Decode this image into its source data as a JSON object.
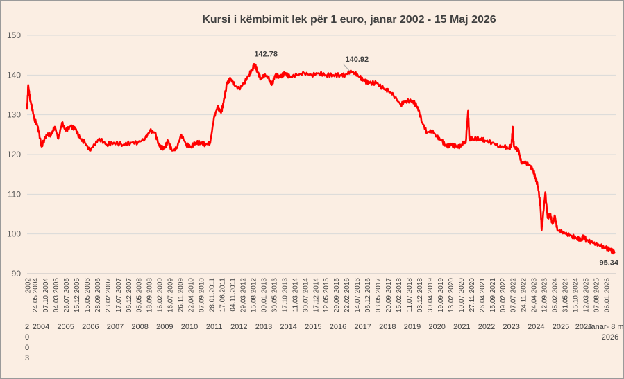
{
  "chart_data": {
    "type": "line",
    "title": "Kursi i këmbimit lek për 1 euro, janar 2002 - 15 Maj 2026",
    "xlabel": "",
    "ylabel": "",
    "ylim": [
      90,
      150
    ],
    "yticks": [
      90,
      100,
      110,
      120,
      130,
      140,
      150
    ],
    "grid": true,
    "line_color": "#ff0000",
    "first_date_label": "2002",
    "date_ticks": [
      "24.05.2004",
      "07.10.2004",
      "04.03.2005",
      "26.07.2005",
      "15.12.2005",
      "15.05.2006",
      "28.09.2006",
      "23.02.2007",
      "17.07.2007",
      "06.12.2007",
      "05.05.2008",
      "18.09.2008",
      "16.02.2009",
      "16.07.2009",
      "26.11.2009",
      "22.04.2010",
      "07.09.2010",
      "28.01.2011",
      "17.06.2011",
      "04.11.2011",
      "29.03.2012",
      "15.08.2012",
      "09.01.2013",
      "30.05.2013",
      "17.10.2013",
      "11.03.2014",
      "30.07.2014",
      "17.12.2014",
      "12.05.2015",
      "29.09.2015",
      "22.02.2016",
      "14.07.2016",
      "06.12.2016",
      "03.05.2017",
      "20.09.2017",
      "15.02.2018",
      "11.07.2018",
      "03.12.2018",
      "30.04.2019",
      "19.09.2019",
      "13.02.2020",
      "10.07.2020",
      "27.11.2020",
      "26.04.2021",
      "15.09.2021",
      "09.02.2022",
      "07.07.2022",
      "24.11.2022",
      "24.04.2023",
      "12.09.2023",
      "05.02.2024",
      "31.05.2024",
      "15.10.2024",
      "12.03.2025",
      "07.08.2025",
      "06.01.2026"
    ],
    "year_labels": [
      "2004",
      "2005",
      "2006",
      "2007",
      "2008",
      "2009",
      "2010",
      "2011",
      "2012",
      "2013",
      "2014",
      "2015",
      "2016",
      "2017",
      "2018",
      "2019",
      "2020",
      "2021",
      "2022",
      "2023",
      "2024",
      "2025"
    ],
    "year_2003_letters": [
      "2",
      "0",
      "0",
      "3"
    ],
    "year_2026_label": "2026",
    "last_tick_label": "Janar- 8 m",
    "last_year_label": "2026",
    "annotations": [
      {
        "text": "142.78",
        "x": 2011.45,
        "y": 142.78
      },
      {
        "text": "140.92",
        "x": 2015.4,
        "y": 140.92
      },
      {
        "text": "95.34",
        "x": 2026.37,
        "y": 95.34
      }
    ],
    "series": [
      {
        "points": [
          [
            2002.0,
            131.5
          ],
          [
            2002.05,
            137.5
          ],
          [
            2002.12,
            134
          ],
          [
            2002.2,
            132
          ],
          [
            2002.3,
            129
          ],
          [
            2002.45,
            127
          ],
          [
            2002.6,
            122
          ],
          [
            2002.8,
            125
          ],
          [
            2003.0,
            125
          ],
          [
            2003.15,
            127
          ],
          [
            2003.3,
            124
          ],
          [
            2003.45,
            128
          ],
          [
            2003.6,
            126
          ],
          [
            2003.8,
            127
          ],
          [
            2004.0,
            126.5
          ],
          [
            2004.2,
            124
          ],
          [
            2004.4,
            123
          ],
          [
            2004.6,
            121
          ],
          [
            2004.8,
            122.5
          ],
          [
            2005.0,
            124
          ],
          [
            2005.3,
            122.5
          ],
          [
            2005.6,
            123
          ],
          [
            2006.0,
            122.5
          ],
          [
            2006.3,
            123
          ],
          [
            2006.6,
            123
          ],
          [
            2006.9,
            124
          ],
          [
            2007.1,
            126
          ],
          [
            2007.3,
            125.5
          ],
          [
            2007.5,
            122
          ],
          [
            2007.7,
            121.5
          ],
          [
            2007.85,
            123.5
          ],
          [
            2008.0,
            121
          ],
          [
            2008.2,
            121.5
          ],
          [
            2008.4,
            125
          ],
          [
            2008.6,
            122.5
          ],
          [
            2008.8,
            122
          ],
          [
            2009.0,
            123
          ],
          [
            2009.2,
            123
          ],
          [
            2009.4,
            122.5
          ],
          [
            2009.6,
            123
          ],
          [
            2009.75,
            129
          ],
          [
            2009.9,
            132
          ],
          [
            2010.05,
            130.5
          ],
          [
            2010.15,
            133
          ],
          [
            2010.3,
            138
          ],
          [
            2010.45,
            139
          ],
          [
            2010.6,
            137.5
          ],
          [
            2010.8,
            136.5
          ],
          [
            2011.0,
            138
          ],
          [
            2011.2,
            140
          ],
          [
            2011.35,
            141.5
          ],
          [
            2011.45,
            142.78
          ],
          [
            2011.55,
            141
          ],
          [
            2011.7,
            139
          ],
          [
            2011.85,
            140
          ],
          [
            2012.0,
            139.5
          ],
          [
            2012.15,
            137.5
          ],
          [
            2012.3,
            140
          ],
          [
            2012.5,
            139.5
          ],
          [
            2012.7,
            140.5
          ],
          [
            2012.9,
            139.5
          ],
          [
            2013.2,
            140
          ],
          [
            2013.5,
            140.5
          ],
          [
            2013.8,
            140
          ],
          [
            2014.1,
            140.5
          ],
          [
            2014.4,
            140
          ],
          [
            2014.7,
            140
          ],
          [
            2015.0,
            140
          ],
          [
            2015.2,
            140
          ],
          [
            2015.4,
            140.92
          ],
          [
            2015.6,
            140.5
          ],
          [
            2015.8,
            139.5
          ],
          [
            2016.0,
            138.5
          ],
          [
            2016.2,
            138
          ],
          [
            2016.5,
            138
          ],
          [
            2016.8,
            136.5
          ],
          [
            2017.0,
            136
          ],
          [
            2017.2,
            135
          ],
          [
            2017.5,
            132.5
          ],
          [
            2017.7,
            133.5
          ],
          [
            2018.0,
            133.5
          ],
          [
            2018.2,
            132
          ],
          [
            2018.4,
            128
          ],
          [
            2018.6,
            125.5
          ],
          [
            2018.8,
            126
          ],
          [
            2019.0,
            124.5
          ],
          [
            2019.2,
            123.5
          ],
          [
            2019.4,
            122
          ],
          [
            2019.6,
            122.5
          ],
          [
            2019.8,
            122
          ],
          [
            2020.0,
            122
          ],
          [
            2020.1,
            123
          ],
          [
            2020.2,
            123
          ],
          [
            2020.3,
            131
          ],
          [
            2020.35,
            124
          ],
          [
            2020.5,
            124
          ],
          [
            2020.8,
            124
          ],
          [
            2021.0,
            123.5
          ],
          [
            2021.3,
            123
          ],
          [
            2021.6,
            122
          ],
          [
            2021.8,
            122
          ],
          [
            2022.0,
            121.5
          ],
          [
            2022.1,
            122.5
          ],
          [
            2022.15,
            127
          ],
          [
            2022.2,
            122
          ],
          [
            2022.4,
            121
          ],
          [
            2022.5,
            118
          ],
          [
            2022.7,
            118
          ],
          [
            2022.9,
            117
          ],
          [
            2023.0,
            116
          ],
          [
            2023.1,
            114
          ],
          [
            2023.2,
            112
          ],
          [
            2023.3,
            107
          ],
          [
            2023.35,
            101
          ],
          [
            2023.4,
            104
          ],
          [
            2023.5,
            110.5
          ],
          [
            2023.6,
            104
          ],
          [
            2023.7,
            105
          ],
          [
            2023.8,
            102.5
          ],
          [
            2023.9,
            104.5
          ],
          [
            2024.0,
            101
          ],
          [
            2024.2,
            100.5
          ],
          [
            2024.4,
            100
          ],
          [
            2024.6,
            99.5
          ],
          [
            2024.8,
            99
          ],
          [
            2025.0,
            98.5
          ],
          [
            2025.1,
            99.5
          ],
          [
            2025.2,
            98.5
          ],
          [
            2025.4,
            98
          ],
          [
            2025.6,
            97.5
          ],
          [
            2025.8,
            97
          ],
          [
            2026.0,
            96.5
          ],
          [
            2026.2,
            96
          ],
          [
            2026.37,
            95.34
          ]
        ]
      }
    ]
  }
}
